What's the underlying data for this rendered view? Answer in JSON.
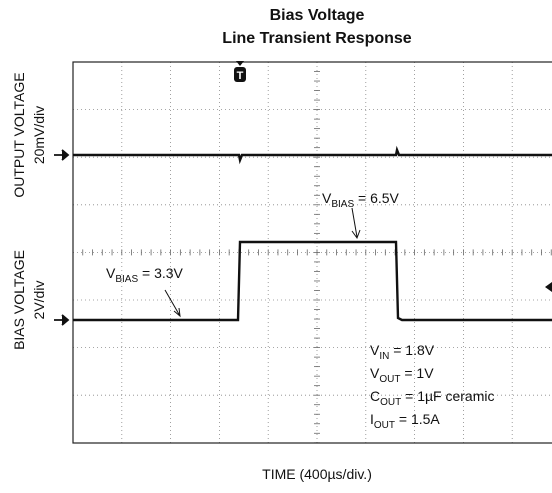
{
  "chart_data": {
    "type": "scope",
    "title": [
      "Bias Voltage",
      "Line Transient Response"
    ],
    "xlabel": "TIME (400µs/div.)",
    "ylabels": [
      [
        "OUTPUT VOLTAGE",
        "20mV/div"
      ],
      [
        "BIAS VOLTAGE",
        "2V/div"
      ]
    ],
    "trigger": "T",
    "annotations": [
      {
        "main": "V",
        "sub": "BIAS",
        "rest": " = 6.5V"
      },
      {
        "main": "V",
        "sub": "BIAS",
        "rest": " = 3.3V"
      },
      {
        "main": "V",
        "sub": "IN",
        "rest": " = 1.8V"
      },
      {
        "main": "V",
        "sub": "OUT",
        "rest": " = 1V"
      },
      {
        "main": "C",
        "sub": "OUT",
        "rest": " = 1µF ceramic"
      },
      {
        "main": "I",
        "sub": "OUT",
        "rest": " = 1.5A"
      }
    ]
  }
}
